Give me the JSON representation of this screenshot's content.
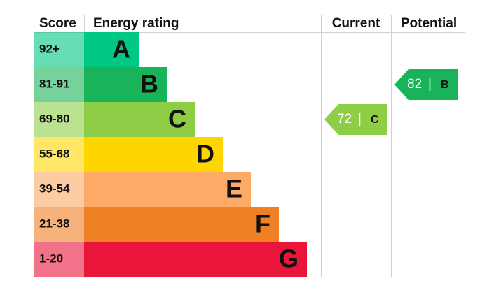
{
  "header": {
    "score": "Score",
    "rating": "Energy rating",
    "current": "Current",
    "potential": "Potential"
  },
  "bands": [
    {
      "score": "92+",
      "letter": "A",
      "color": "#00c781"
    },
    {
      "score": "81-91",
      "letter": "B",
      "color": "#19b459"
    },
    {
      "score": "69-80",
      "letter": "C",
      "color": "#8dce46"
    },
    {
      "score": "55-68",
      "letter": "D",
      "color": "#ffd500"
    },
    {
      "score": "39-54",
      "letter": "E",
      "color": "#fcaa65"
    },
    {
      "score": "21-38",
      "letter": "F",
      "color": "#ef8023"
    },
    {
      "score": "1-20",
      "letter": "G",
      "color": "#e9153b"
    }
  ],
  "current": {
    "value": 72,
    "separator": "|",
    "letter": "C"
  },
  "potential": {
    "value": 82,
    "separator": "|",
    "letter": "B"
  }
}
